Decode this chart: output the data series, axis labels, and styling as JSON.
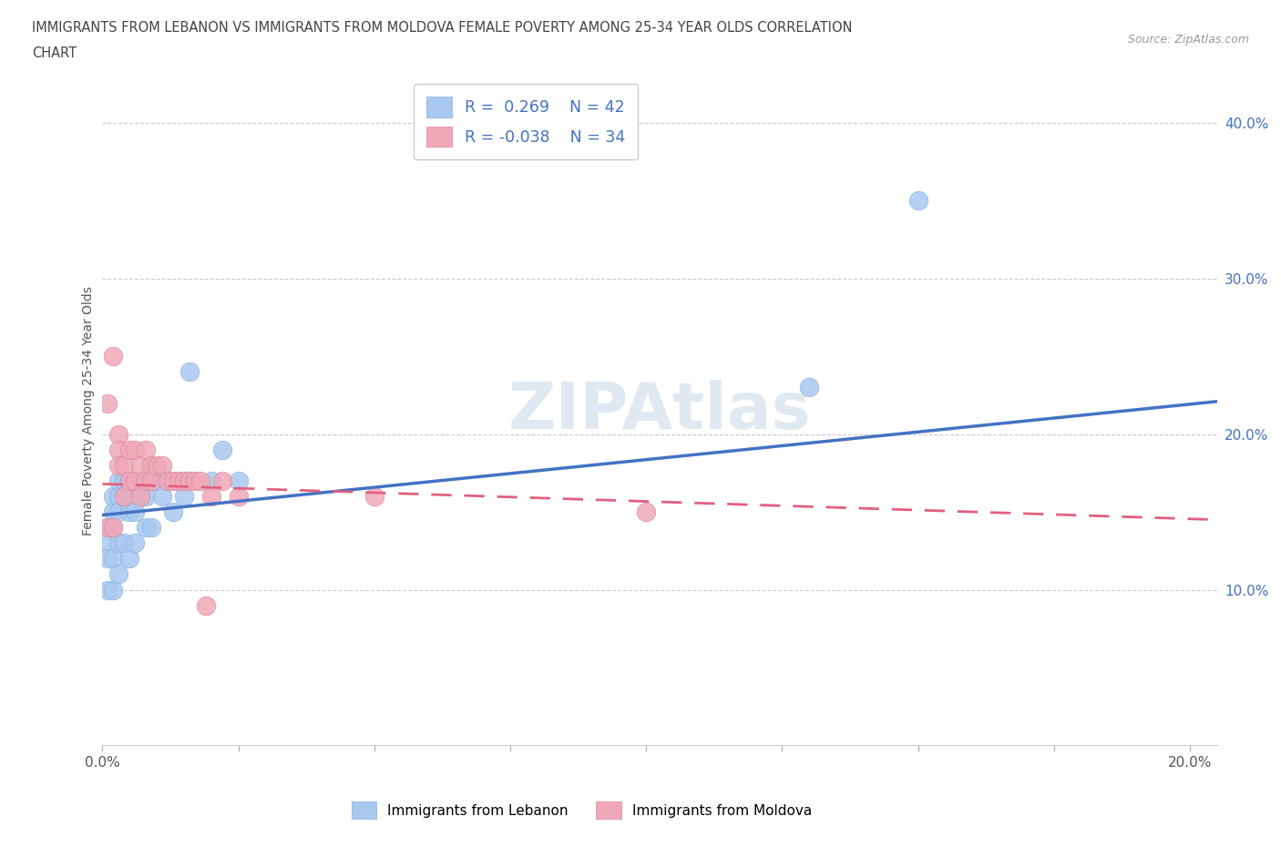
{
  "title_line1": "IMMIGRANTS FROM LEBANON VS IMMIGRANTS FROM MOLDOVA FEMALE POVERTY AMONG 25-34 YEAR OLDS CORRELATION",
  "title_line2": "CHART",
  "source": "Source: ZipAtlas.com",
  "ylabel": "Female Poverty Among 25-34 Year Olds",
  "xlim": [
    0.0,
    0.205
  ],
  "ylim": [
    0.0,
    0.43
  ],
  "xticks": [
    0.0,
    0.025,
    0.05,
    0.075,
    0.1,
    0.125,
    0.15,
    0.175,
    0.2
  ],
  "xtick_labels_show": {
    "0.0": "0.0%",
    "0.20": "20.0%"
  },
  "yticks_right": [
    0.1,
    0.2,
    0.3,
    0.4
  ],
  "ytick_labels_right": [
    "10.0%",
    "20.0%",
    "30.0%",
    "40.0%"
  ],
  "lebanon_color": "#a8c8f0",
  "moldova_color": "#f0a8b8",
  "lebanon_line_color": "#4472c4",
  "moldova_line_color": "#e06080",
  "legend_text_color": "#4472c4",
  "lebanon_R": 0.269,
  "lebanon_N": 42,
  "moldova_R": -0.038,
  "moldova_N": 34,
  "watermark": "ZIPAtlas",
  "watermark_color": "#c8d8e8",
  "lebanon_x": [
    0.001,
    0.001,
    0.001,
    0.001,
    0.002,
    0.002,
    0.002,
    0.002,
    0.002,
    0.003,
    0.003,
    0.003,
    0.003,
    0.003,
    0.004,
    0.004,
    0.004,
    0.005,
    0.005,
    0.005,
    0.005,
    0.006,
    0.006,
    0.006,
    0.007,
    0.007,
    0.008,
    0.008,
    0.009,
    0.009,
    0.01,
    0.011,
    0.012,
    0.013,
    0.015,
    0.015,
    0.016,
    0.02,
    0.022,
    0.025,
    0.13,
    0.15
  ],
  "lebanon_y": [
    0.14,
    0.13,
    0.12,
    0.1,
    0.16,
    0.15,
    0.14,
    0.12,
    0.1,
    0.17,
    0.16,
    0.15,
    0.13,
    0.11,
    0.17,
    0.16,
    0.13,
    0.17,
    0.16,
    0.15,
    0.12,
    0.17,
    0.15,
    0.13,
    0.17,
    0.16,
    0.16,
    0.14,
    0.17,
    0.14,
    0.17,
    0.16,
    0.17,
    0.15,
    0.17,
    0.16,
    0.24,
    0.17,
    0.19,
    0.17,
    0.23,
    0.35
  ],
  "moldova_x": [
    0.001,
    0.001,
    0.002,
    0.002,
    0.003,
    0.003,
    0.003,
    0.004,
    0.004,
    0.005,
    0.005,
    0.006,
    0.006,
    0.007,
    0.007,
    0.008,
    0.008,
    0.009,
    0.009,
    0.01,
    0.011,
    0.012,
    0.013,
    0.014,
    0.015,
    0.016,
    0.017,
    0.018,
    0.019,
    0.02,
    0.022,
    0.025,
    0.05,
    0.1
  ],
  "moldova_y": [
    0.22,
    0.14,
    0.25,
    0.14,
    0.2,
    0.19,
    0.18,
    0.18,
    0.16,
    0.19,
    0.17,
    0.19,
    0.17,
    0.18,
    0.16,
    0.19,
    0.17,
    0.18,
    0.17,
    0.18,
    0.18,
    0.17,
    0.17,
    0.17,
    0.17,
    0.17,
    0.17,
    0.17,
    0.09,
    0.16,
    0.17,
    0.16,
    0.16,
    0.15
  ],
  "trend_leb_x0": 0.0,
  "trend_leb_x1": 0.205,
  "trend_leb_y0": 0.148,
  "trend_leb_y1": 0.221,
  "trend_mol_x0": 0.0,
  "trend_mol_x1": 0.205,
  "trend_mol_y0": 0.168,
  "trend_mol_y1": 0.145
}
